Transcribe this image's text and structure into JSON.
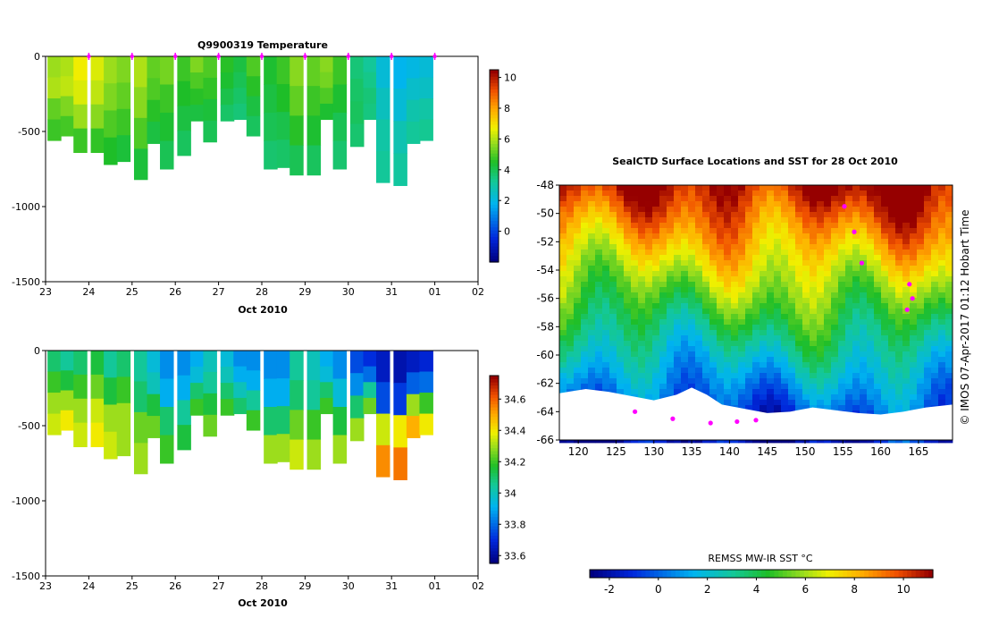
{
  "colors": {
    "marker": "#ff00ff",
    "land": "#ffffff",
    "axis": "#000000"
  },
  "chart_data": [
    {
      "type": "heatmap",
      "title": "Q9900319  Temperature",
      "xlabel": "Oct 2010",
      "x_tick_labels": [
        "23",
        "24",
        "25",
        "26",
        "27",
        "28",
        "29",
        "30",
        "31",
        "01",
        "02"
      ],
      "xlim": [
        23,
        33
      ],
      "y_tick_labels": [
        "0",
        "-500",
        "-1000",
        "-1500"
      ],
      "y_ticks": [
        0,
        -500,
        -1000,
        -1500
      ],
      "ylim": [
        -1500,
        0
      ],
      "colorbar": {
        "range": [
          -2,
          10.5
        ],
        "ticks": [
          "10",
          "8",
          "6",
          "4",
          "2",
          "0"
        ],
        "tick_values": [
          10,
          8,
          6,
          4,
          2,
          0
        ]
      },
      "profile_markers_day": [
        24,
        25,
        26,
        27,
        28,
        29,
        30,
        31,
        32
      ],
      "profiles": [
        {
          "day": 23.2,
          "max_depth": 560,
          "values": [
            5.8,
            6.0,
            5.2,
            4.8
          ]
        },
        {
          "day": 23.5,
          "max_depth": 530,
          "values": [
            6.0,
            6.2,
            5.5,
            4.9
          ]
        },
        {
          "day": 23.8,
          "max_depth": 640,
          "values": [
            6.8,
            6.5,
            5.8,
            4.8
          ]
        },
        {
          "day": 24.2,
          "max_depth": 640,
          "values": [
            6.5,
            6.2,
            5.6,
            4.7
          ]
        },
        {
          "day": 24.5,
          "max_depth": 720,
          "values": [
            5.8,
            5.5,
            5.0,
            4.5
          ]
        },
        {
          "day": 24.8,
          "max_depth": 700,
          "values": [
            5.5,
            5.2,
            4.8,
            4.3
          ]
        },
        {
          "day": 25.2,
          "max_depth": 820,
          "values": [
            6.0,
            5.6,
            5.0,
            4.3
          ]
        },
        {
          "day": 25.5,
          "max_depth": 580,
          "values": [
            5.2,
            5.0,
            4.6,
            4.2
          ]
        },
        {
          "day": 25.8,
          "max_depth": 750,
          "values": [
            5.4,
            4.8,
            4.4,
            4.0
          ]
        },
        {
          "day": 26.2,
          "max_depth": 660,
          "values": [
            4.8,
            4.5,
            4.2,
            3.9
          ]
        },
        {
          "day": 26.5,
          "max_depth": 430,
          "values": [
            5.5,
            5.0,
            4.6,
            4.2
          ]
        },
        {
          "day": 26.8,
          "max_depth": 570,
          "values": [
            5.0,
            4.7,
            4.3,
            4.0
          ]
        },
        {
          "day": 27.2,
          "max_depth": 430,
          "values": [
            4.6,
            4.4,
            4.1,
            3.8
          ]
        },
        {
          "day": 27.5,
          "max_depth": 420,
          "values": [
            4.2,
            4.0,
            3.8,
            3.6
          ]
        },
        {
          "day": 27.8,
          "max_depth": 530,
          "values": [
            5.0,
            4.6,
            4.2,
            3.9
          ]
        },
        {
          "day": 28.2,
          "max_depth": 750,
          "values": [
            4.4,
            4.2,
            4.0,
            3.7
          ]
        },
        {
          "day": 28.5,
          "max_depth": 740,
          "values": [
            4.8,
            4.5,
            4.1,
            3.8
          ]
        },
        {
          "day": 28.8,
          "max_depth": 790,
          "values": [
            5.6,
            5.2,
            4.6,
            4.0
          ]
        },
        {
          "day": 29.2,
          "max_depth": 790,
          "values": [
            5.2,
            4.8,
            4.4,
            3.9
          ]
        },
        {
          "day": 29.5,
          "max_depth": 420,
          "values": [
            5.6,
            5.4,
            5.0,
            4.4
          ]
        },
        {
          "day": 29.8,
          "max_depth": 750,
          "values": [
            4.8,
            4.4,
            4.0,
            3.7
          ]
        },
        {
          "day": 30.2,
          "max_depth": 600,
          "values": [
            3.6,
            3.8,
            3.9,
            3.7
          ]
        },
        {
          "day": 30.5,
          "max_depth": 420,
          "values": [
            3.2,
            3.4,
            3.6,
            3.5
          ]
        },
        {
          "day": 30.8,
          "max_depth": 840,
          "values": [
            2.2,
            2.6,
            3.0,
            3.2
          ]
        },
        {
          "day": 31.2,
          "max_depth": 860,
          "values": [
            1.8,
            2.2,
            2.8,
            3.1
          ]
        },
        {
          "day": 31.5,
          "max_depth": 580,
          "values": [
            2.0,
            2.4,
            2.9,
            3.2
          ]
        },
        {
          "day": 31.8,
          "max_depth": 560,
          "values": [
            2.2,
            2.5,
            3.0,
            3.3
          ]
        }
      ]
    },
    {
      "type": "heatmap",
      "xlabel": "Oct 2010",
      "x_tick_labels": [
        "23",
        "24",
        "25",
        "26",
        "27",
        "28",
        "29",
        "30",
        "31",
        "01",
        "02"
      ],
      "xlim": [
        23,
        33
      ],
      "y_tick_labels": [
        "0",
        "-500",
        "-1000",
        "-1500"
      ],
      "y_ticks": [
        0,
        -500,
        -1000,
        -1500
      ],
      "ylim": [
        -1500,
        0
      ],
      "colorbar": {
        "range": [
          33.55,
          34.75
        ],
        "ticks": [
          "34.6",
          "34.4",
          "34.2",
          "34",
          "33.8",
          "33.6"
        ],
        "tick_values": [
          34.6,
          34.4,
          34.2,
          34.0,
          33.8,
          33.6
        ]
      },
      "profiles": [
        {
          "day": 23.2,
          "max_depth": 560,
          "values": [
            34.1,
            34.2,
            34.3,
            34.35
          ]
        },
        {
          "day": 23.5,
          "max_depth": 530,
          "values": [
            34.05,
            34.15,
            34.3,
            34.4
          ]
        },
        {
          "day": 23.8,
          "max_depth": 640,
          "values": [
            34.1,
            34.2,
            34.3,
            34.35
          ]
        },
        {
          "day": 24.2,
          "max_depth": 640,
          "values": [
            34.15,
            34.25,
            34.35,
            34.4
          ]
        },
        {
          "day": 24.5,
          "max_depth": 720,
          "values": [
            34.05,
            34.15,
            34.3,
            34.35
          ]
        },
        {
          "day": 24.8,
          "max_depth": 700,
          "values": [
            34.1,
            34.2,
            34.3,
            34.3
          ]
        },
        {
          "day": 25.2,
          "max_depth": 820,
          "values": [
            34.05,
            34.1,
            34.25,
            34.3
          ]
        },
        {
          "day": 25.5,
          "max_depth": 580,
          "values": [
            33.95,
            34.0,
            34.15,
            34.25
          ]
        },
        {
          "day": 25.8,
          "max_depth": 750,
          "values": [
            33.85,
            33.9,
            34.1,
            34.2
          ]
        },
        {
          "day": 26.2,
          "max_depth": 660,
          "values": [
            33.85,
            33.9,
            34.05,
            34.15
          ]
        },
        {
          "day": 26.5,
          "max_depth": 430,
          "values": [
            33.9,
            33.95,
            34.1,
            34.2
          ]
        },
        {
          "day": 26.8,
          "max_depth": 570,
          "values": [
            34.0,
            34.05,
            34.15,
            34.25
          ]
        },
        {
          "day": 27.2,
          "max_depth": 430,
          "values": [
            33.95,
            34.0,
            34.1,
            34.2
          ]
        },
        {
          "day": 27.5,
          "max_depth": 420,
          "values": [
            33.85,
            33.9,
            34.0,
            34.1
          ]
        },
        {
          "day": 27.8,
          "max_depth": 530,
          "values": [
            33.85,
            33.9,
            34.05,
            34.2
          ]
        },
        {
          "day": 28.2,
          "max_depth": 750,
          "values": [
            33.85,
            33.9,
            34.1,
            34.3
          ]
        },
        {
          "day": 28.5,
          "max_depth": 740,
          "values": [
            33.85,
            33.9,
            34.1,
            34.3
          ]
        },
        {
          "day": 28.8,
          "max_depth": 790,
          "values": [
            34.05,
            34.1,
            34.25,
            34.35
          ]
        },
        {
          "day": 29.2,
          "max_depth": 790,
          "values": [
            34.0,
            34.05,
            34.2,
            34.3
          ]
        },
        {
          "day": 29.5,
          "max_depth": 420,
          "values": [
            33.9,
            33.95,
            34.1,
            34.2
          ]
        },
        {
          "day": 29.8,
          "max_depth": 750,
          "values": [
            33.85,
            33.95,
            34.15,
            34.3
          ]
        },
        {
          "day": 30.2,
          "max_depth": 600,
          "values": [
            33.75,
            33.85,
            34.1,
            34.3
          ]
        },
        {
          "day": 30.5,
          "max_depth": 420,
          "values": [
            33.7,
            33.8,
            34.05,
            34.25
          ]
        },
        {
          "day": 30.8,
          "max_depth": 840,
          "values": [
            33.65,
            33.75,
            34.35,
            34.55
          ]
        },
        {
          "day": 31.2,
          "max_depth": 860,
          "values": [
            33.62,
            33.72,
            34.4,
            34.58
          ]
        },
        {
          "day": 31.5,
          "max_depth": 580,
          "values": [
            33.65,
            33.78,
            34.3,
            34.5
          ]
        },
        {
          "day": 31.8,
          "max_depth": 560,
          "values": [
            33.68,
            33.8,
            34.2,
            34.4
          ]
        }
      ]
    },
    {
      "type": "heatmap",
      "title": "SealCTD Surface Locations and SST for 28 Oct 2010",
      "x_tick_labels": [
        "120",
        "125",
        "130",
        "135",
        "140",
        "145",
        "150",
        "155",
        "160",
        "165"
      ],
      "x_ticks": [
        120,
        125,
        130,
        135,
        140,
        145,
        150,
        155,
        160,
        165
      ],
      "xlim": [
        117.5,
        169.5
      ],
      "y_tick_labels": [
        "-48",
        "-50",
        "-52",
        "-54",
        "-56",
        "-58",
        "-60",
        "-62",
        "-64",
        "-66"
      ],
      "y_ticks": [
        -48,
        -50,
        -52,
        -54,
        -56,
        -58,
        -60,
        -62,
        -64,
        -66
      ],
      "ylim": [
        -66,
        -48
      ],
      "side_label": "© IMOS 07-Apr-2017 01:12 Hobart Time",
      "colorbar": {
        "label": "REMSS MW-IR SST °C",
        "range": [
          -2.8,
          11.2
        ],
        "ticks": [
          "-2",
          "0",
          "2",
          "4",
          "6",
          "8",
          "10"
        ],
        "tick_values": [
          -2,
          0,
          2,
          4,
          6,
          8,
          10
        ]
      },
      "fronts": [
        {
          "temp": 7.5,
          "base_lat": -52.2,
          "amp": 1.2
        },
        {
          "temp": 4.5,
          "base_lat": -54.5,
          "amp": 1.0
        },
        {
          "temp": 1.5,
          "base_lat": -58.0,
          "amp": 1.3
        }
      ],
      "seal_locations": [
        {
          "lon": 155.2,
          "lat": -49.5
        },
        {
          "lon": 156.5,
          "lat": -51.3
        },
        {
          "lon": 157.5,
          "lat": -53.5
        },
        {
          "lon": 163.8,
          "lat": -55.0
        },
        {
          "lon": 164.2,
          "lat": -56.0
        },
        {
          "lon": 163.5,
          "lat": -56.8
        },
        {
          "lon": 127.5,
          "lat": -64.0
        },
        {
          "lon": 132.5,
          "lat": -64.5
        },
        {
          "lon": 137.5,
          "lat": -64.8
        },
        {
          "lon": 141.0,
          "lat": -64.7
        },
        {
          "lon": 143.5,
          "lat": -64.6
        }
      ]
    }
  ]
}
